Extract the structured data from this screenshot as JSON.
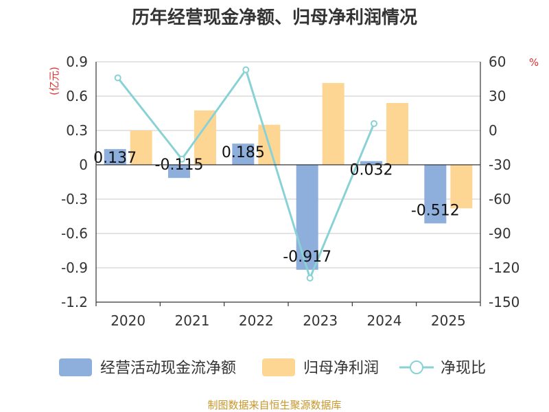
{
  "colors": {
    "cash_bar": "#8eaedc",
    "profit_bar": "#fed694",
    "ratio_line": "#88d2d6",
    "unit": "#e03030",
    "source": "#c8962a"
  },
  "chart_data": {
    "type": "bar",
    "title": "历年经营现金净额、归母净利润情况",
    "left_unit": "(亿元)",
    "right_unit": "%",
    "categories": [
      "2020",
      "2021",
      "2022",
      "2023",
      "2024",
      "2025"
    ],
    "series": [
      {
        "name": "经营活动现金流净额",
        "kind": "bar",
        "axis": "left",
        "values": [
          0.137,
          -0.115,
          0.185,
          -0.917,
          0.032,
          -0.512
        ],
        "labels": [
          "0.137",
          "-0.115",
          "0.185",
          "-0.917",
          "0.032",
          "-0.512"
        ]
      },
      {
        "name": "归母净利润",
        "kind": "bar",
        "axis": "left",
        "values": [
          0.3,
          0.475,
          0.35,
          0.715,
          0.54,
          -0.38
        ]
      },
      {
        "name": "净现比",
        "kind": "line",
        "axis": "right",
        "values": [
          46,
          -25,
          53,
          -129,
          6,
          null
        ]
      }
    ],
    "y_left": {
      "min": -1.2,
      "max": 0.9,
      "ticks": [
        0.9,
        0.6,
        0.3,
        0,
        -0.3,
        -0.6,
        -0.9,
        -1.2
      ],
      "tick_labels": [
        "0.9",
        "0.6",
        "0.3",
        "0",
        "-0.3",
        "-0.6",
        "-0.9",
        "-1.2"
      ]
    },
    "y_right": {
      "min": -150,
      "max": 60,
      "ticks": [
        60,
        30,
        0,
        -30,
        -60,
        -90,
        -120,
        -150
      ],
      "tick_labels": [
        "60",
        "30",
        "0",
        "-30",
        "-60",
        "-90",
        "-120",
        "-150"
      ]
    },
    "grid": true,
    "legend_position": "bottom"
  },
  "source": "制图数据来自恒生聚源数据库"
}
